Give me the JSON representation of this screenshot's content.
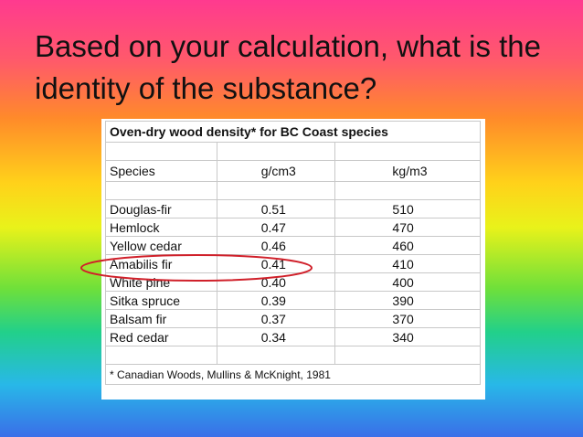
{
  "slide": {
    "title": "Based on your calculation, what is the identity of the substance?"
  },
  "table": {
    "caption": "Oven-dry wood density* for BC Coast species",
    "header": [
      "Species",
      "g/cm3",
      "kg/m3"
    ],
    "rows": [
      [
        "Douglas-fir",
        "0.51",
        "510"
      ],
      [
        "Hemlock",
        "0.47",
        "470"
      ],
      [
        "Yellow cedar",
        "0.46",
        "460"
      ],
      [
        "Amabilis fir",
        "0.41",
        "410"
      ],
      [
        "White pine",
        "0.40",
        "400"
      ],
      [
        "Sitka spruce",
        "0.39",
        "390"
      ],
      [
        "Balsam fir",
        "0.37",
        "370"
      ],
      [
        "Red cedar",
        "0.34",
        "340"
      ]
    ],
    "footnote": "* Canadian Woods, Mullins & McKnight, 1981"
  }
}
